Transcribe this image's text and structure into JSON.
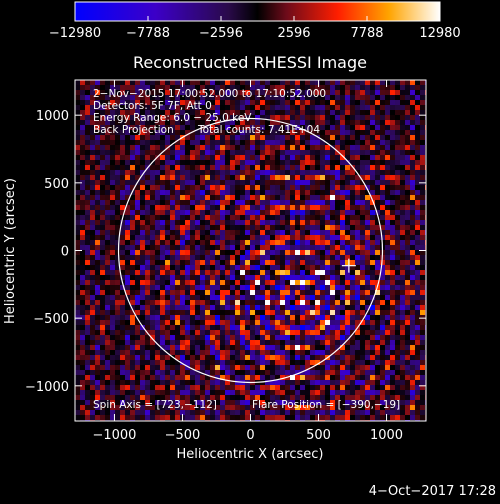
{
  "chart_data": {
    "type": "heatmap",
    "title": "Reconstructed RHESSI Image",
    "xlabel": "Heliocentric X (arcsec)",
    "ylabel": "Heliocentric Y (arcsec)",
    "xlim": [
      -1290,
      1290
    ],
    "ylim": [
      -1260,
      1260
    ],
    "xticks": [
      -1000,
      -500,
      0,
      500,
      1000
    ],
    "xtick_labels": [
      "−1000",
      "−500",
      "0",
      "500",
      "1000"
    ],
    "yticks": [
      -1000,
      -500,
      0,
      500,
      1000
    ],
    "ytick_labels": [
      "−1000",
      "−500",
      "0",
      "500",
      "1000"
    ],
    "colorbar": {
      "min": -12980,
      "max": 12980,
      "ticks": [
        -12980,
        -7788,
        -2596,
        2596,
        7788,
        12980
      ],
      "tick_labels": [
        "−12980",
        "−7788",
        "−2596",
        "2596",
        "7788",
        "12980"
      ]
    },
    "annotations": {
      "time_range": "2−Nov−2015 17:00:52.000 to 17:10:52.000",
      "detectors": "Detectors: 5F 7F, Att 0",
      "energy_range": "Energy Range: 6.0 − 25.0 keV",
      "back_projection": "Back Projection",
      "total_counts": "Total counts: 7.41E+04",
      "spin_axis": "Spin Axis = [723,−112]",
      "flare_position": "Flare Position = [−390,−19]"
    },
    "solar_limb": {
      "center": [
        0,
        0
      ],
      "radius": 970
    },
    "spin_axis_marker": [
      723,
      -112
    ],
    "flare_position": [
      -390,
      -19
    ]
  },
  "footer": {
    "timestamp": "4−Oct−2017 17:28"
  },
  "colors": {
    "background": "#000000",
    "text": "#ffffff",
    "limb": "#ffffff"
  }
}
